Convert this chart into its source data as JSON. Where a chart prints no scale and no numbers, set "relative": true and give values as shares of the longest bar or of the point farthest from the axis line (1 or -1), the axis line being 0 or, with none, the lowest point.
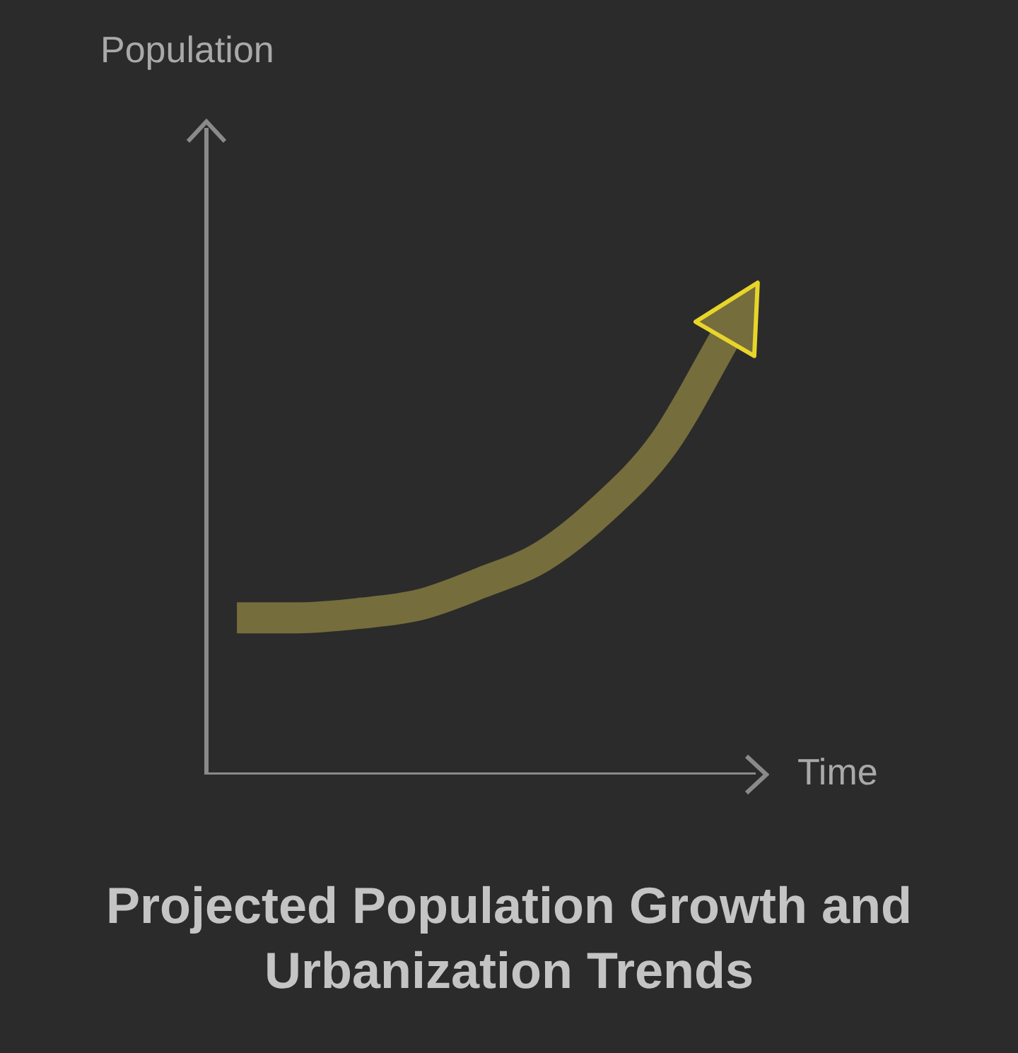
{
  "chart_data": {
    "type": "line",
    "title": "Projected Population Growth and Urbanization Trends",
    "xlabel": "Time",
    "annotations": [
      "Population"
    ],
    "relative": true,
    "grid": false,
    "legend": false,
    "marker": "none",
    "line_style": "solid",
    "tick_labels": false,
    "categories": [
      null,
      null,
      null,
      null,
      null,
      null,
      null,
      null,
      null
    ],
    "series": [
      {
        "color": "#756d3c",
        "values": [
          0.36,
          0.36,
          0.37,
          0.39,
          0.44,
          0.5,
          0.61,
          0.76,
          1
        ]
      }
    ]
  }
}
